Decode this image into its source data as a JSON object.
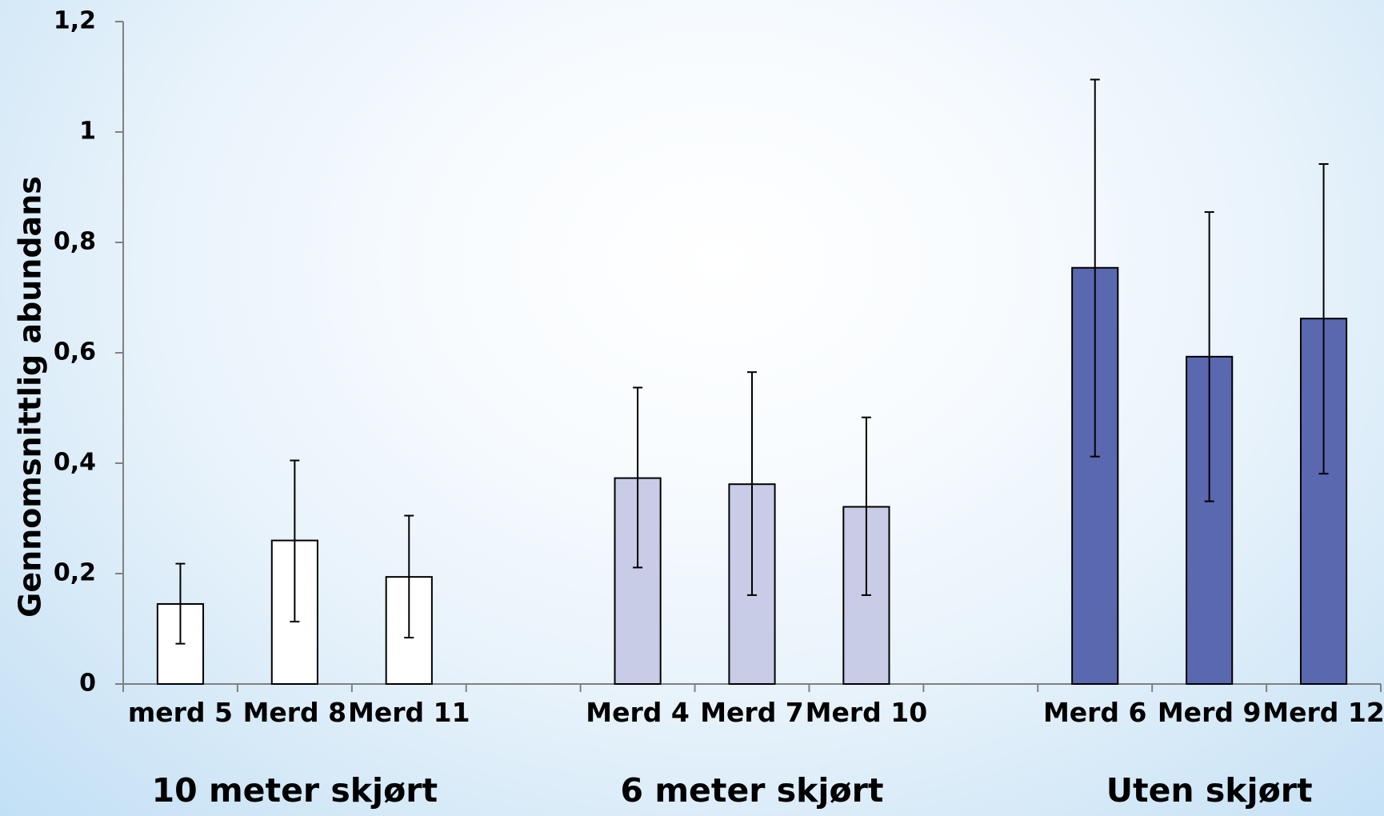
{
  "chart_data": {
    "type": "bar",
    "title": "",
    "ylabel": "Gennomsnittlig abundans",
    "xlabel": "",
    "ylim": [
      0,
      1.2
    ],
    "yticks": [
      {
        "value": 0,
        "label": "0"
      },
      {
        "value": 0.2,
        "label": "0,2"
      },
      {
        "value": 0.4,
        "label": "0,4"
      },
      {
        "value": 0.6,
        "label": "0,6"
      },
      {
        "value": 0.8,
        "label": "0,8"
      },
      {
        "value": 1.0,
        "label": "1"
      },
      {
        "value": 1.2,
        "label": "1,2"
      }
    ],
    "grid": false,
    "legend": "none",
    "groups": [
      {
        "name": "10 meter skjørt",
        "color": "#ffffff",
        "bars": [
          {
            "category": "merd 5",
            "value": 0.145,
            "err_low": 0.073,
            "err_high": 0.218
          },
          {
            "category": "Merd 8",
            "value": 0.26,
            "err_low": 0.113,
            "err_high": 0.405
          },
          {
            "category": "Merd 11",
            "value": 0.194,
            "err_low": 0.084,
            "err_high": 0.305
          }
        ]
      },
      {
        "name": "6 meter skjørt",
        "color": "#c9cce6",
        "bars": [
          {
            "category": "Merd 4",
            "value": 0.373,
            "err_low": 0.211,
            "err_high": 0.537
          },
          {
            "category": "Merd 7",
            "value": 0.362,
            "err_low": 0.161,
            "err_high": 0.565
          },
          {
            "category": "Merd 10",
            "value": 0.321,
            "err_low": 0.161,
            "err_high": 0.483
          }
        ]
      },
      {
        "name": "Uten skjørt",
        "color": "#5a68b0",
        "bars": [
          {
            "category": "Merd 6",
            "value": 0.754,
            "err_low": 0.412,
            "err_high": 1.095
          },
          {
            "category": "Merd 9",
            "value": 0.593,
            "err_low": 0.331,
            "err_high": 0.855
          },
          {
            "category": "Merd 12",
            "value": 0.662,
            "err_low": 0.381,
            "err_high": 0.942
          }
        ]
      }
    ]
  }
}
